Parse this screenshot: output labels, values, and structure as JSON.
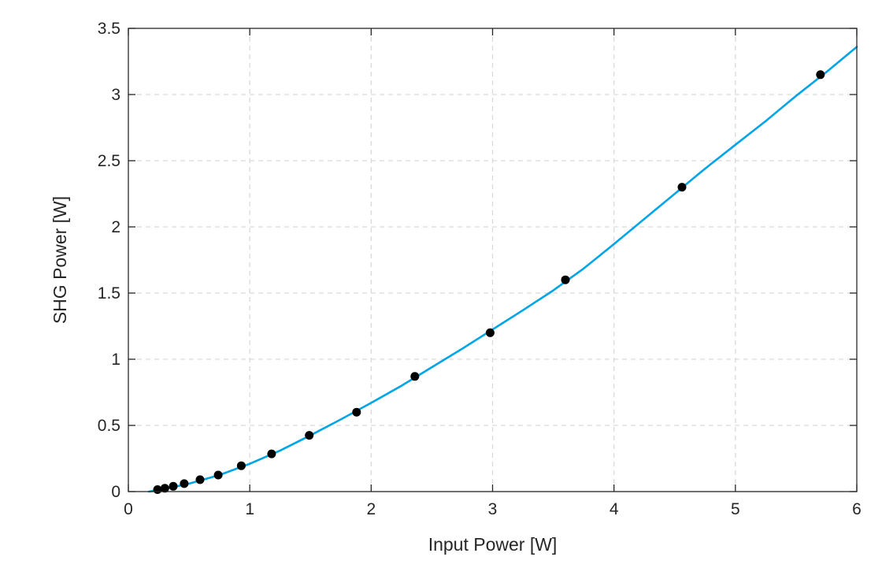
{
  "chart_data": {
    "type": "line",
    "title": "",
    "xlabel": "Input Power [W]",
    "ylabel": "SHG Power [W]",
    "xlim": [
      0,
      6
    ],
    "ylim": [
      0,
      3.5
    ],
    "xticks": [
      "0",
      "1",
      "2",
      "3",
      "4",
      "5",
      "6"
    ],
    "yticks": [
      "0",
      "0.5",
      "1",
      "1.5",
      "2",
      "2.5",
      "3",
      "3.5"
    ],
    "grid": true,
    "series": [
      {
        "type": "line",
        "color": "#00a5e6",
        "x": [
          0.17,
          0.3,
          0.5,
          0.75,
          1.0,
          1.25,
          1.5,
          1.75,
          2.0,
          2.25,
          2.5,
          2.75,
          3.0,
          3.25,
          3.5,
          3.75,
          4.0,
          4.25,
          4.5,
          4.75,
          5.0,
          5.25,
          5.5,
          5.75,
          6.0
        ],
        "y": [
          0.0,
          0.02,
          0.06,
          0.125,
          0.21,
          0.31,
          0.425,
          0.545,
          0.67,
          0.8,
          0.94,
          1.08,
          1.225,
          1.37,
          1.52,
          1.685,
          1.87,
          2.06,
          2.25,
          2.44,
          2.62,
          2.8,
          2.99,
          3.17,
          3.36
        ]
      },
      {
        "type": "scatter",
        "color": "#000000",
        "x": [
          0.24,
          0.3,
          0.37,
          0.46,
          0.59,
          0.74,
          0.93,
          1.18,
          1.49,
          1.88,
          2.36,
          2.98,
          3.6,
          4.56,
          5.7
        ],
        "y": [
          0.015,
          0.025,
          0.04,
          0.06,
          0.09,
          0.125,
          0.195,
          0.285,
          0.425,
          0.6,
          0.87,
          1.2,
          1.6,
          2.3,
          3.15
        ]
      }
    ]
  }
}
